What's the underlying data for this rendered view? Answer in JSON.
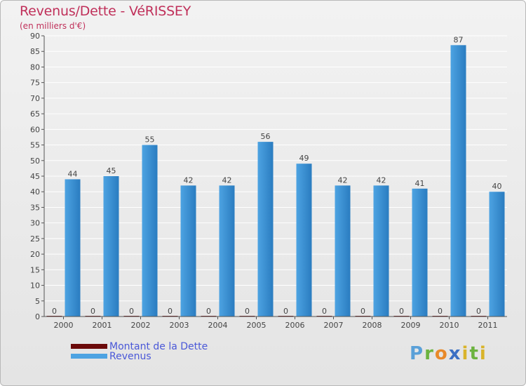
{
  "header": {
    "title": "Revenus/Dette - VéRISSEY",
    "subtitle": "(en milliers d'€)"
  },
  "logo": {
    "text": "Proxiti"
  },
  "colors": {
    "revenus": "#4da3e2",
    "revenus_dark": "#2a7cc0",
    "dette": "#6b0a0a",
    "grid": "#ffffff",
    "axis": "#555555",
    "label": "#444444",
    "title": "#c0305a",
    "legend_text": "#4a58d8"
  },
  "legend": [
    {
      "label": "Montant de la Dette",
      "color": "#6b0a0a"
    },
    {
      "label": "Revenus",
      "color": "#4da3e2"
    }
  ],
  "chart_data": {
    "type": "bar",
    "title": "Revenus/Dette - VéRISSEY",
    "subtitle": "(en milliers d'€)",
    "xlabel": "",
    "ylabel": "",
    "ylim": [
      0,
      90
    ],
    "ytick_step": 5,
    "grid": true,
    "legend_position": "bottom-left",
    "categories": [
      "2000",
      "2001",
      "2002",
      "2003",
      "2004",
      "2005",
      "2006",
      "2007",
      "2008",
      "2009",
      "2010",
      "2011"
    ],
    "series": [
      {
        "name": "Montant de la Dette",
        "values": [
          0,
          0,
          0,
          0,
          0,
          0,
          0,
          0,
          0,
          0,
          0,
          0
        ]
      },
      {
        "name": "Revenus",
        "values": [
          44,
          45,
          55,
          42,
          42,
          56,
          49,
          42,
          42,
          41,
          87,
          40
        ]
      }
    ]
  }
}
